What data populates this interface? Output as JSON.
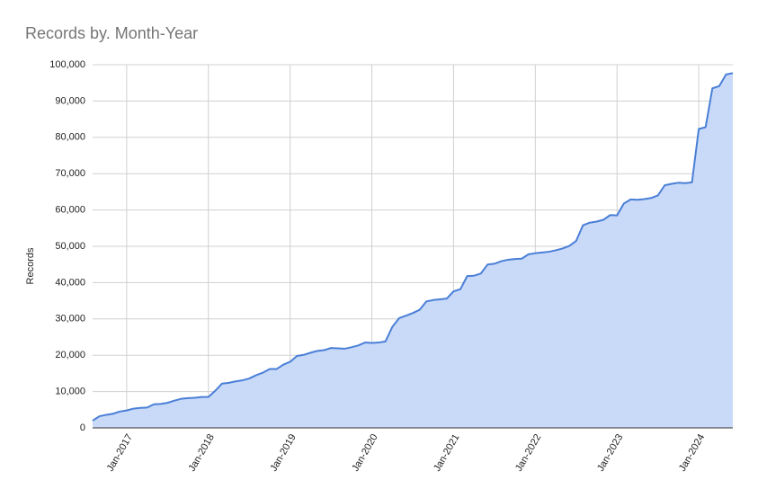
{
  "chart_data": {
    "type": "area",
    "title": "Records by. Month-Year",
    "y_label": "Records",
    "categories": [
      null,
      null,
      null,
      null,
      null,
      "Jan-2017",
      null,
      null,
      null,
      null,
      null,
      null,
      null,
      null,
      null,
      null,
      null,
      "Jan-2018",
      null,
      null,
      null,
      null,
      null,
      null,
      null,
      null,
      null,
      null,
      null,
      "Jan-2019",
      null,
      null,
      null,
      null,
      null,
      null,
      null,
      null,
      null,
      null,
      null,
      "Jan-2020",
      null,
      null,
      null,
      null,
      null,
      null,
      null,
      null,
      null,
      null,
      null,
      "Jan-2021",
      null,
      null,
      null,
      null,
      null,
      null,
      null,
      null,
      null,
      null,
      null,
      "Jan-2022",
      null,
      null,
      null,
      null,
      null,
      null,
      null,
      null,
      null,
      null,
      null,
      "Jan-2023",
      null,
      null,
      null,
      null,
      null,
      null,
      null,
      null,
      null,
      null,
      null,
      "Jan-2024",
      null,
      null,
      null,
      null,
      null
    ],
    "values": [
      2000,
      3200,
      3600,
      3900,
      4500,
      4800,
      5300,
      5500,
      5600,
      6500,
      6600,
      6900,
      7500,
      8000,
      8200,
      8300,
      8500,
      8500,
      10200,
      12200,
      12400,
      12800,
      13100,
      13600,
      14500,
      15200,
      16200,
      16200,
      17400,
      18200,
      19800,
      20100,
      20700,
      21200,
      21400,
      22000,
      21900,
      21800,
      22200,
      22700,
      23500,
      23400,
      23500,
      23800,
      27800,
      30200,
      30900,
      31600,
      32500,
      34800,
      35200,
      35400,
      35600,
      37600,
      38200,
      41800,
      41900,
      42500,
      45000,
      45200,
      45900,
      46300,
      46500,
      46600,
      47800,
      48100,
      48300,
      48500,
      48900,
      49400,
      50100,
      51500,
      55800,
      56500,
      56800,
      57300,
      58600,
      58500,
      61800,
      62900,
      62800,
      63000,
      63300,
      64000,
      66800,
      67200,
      67500,
      67400,
      67600,
      82300,
      82800,
      93500,
      94100,
      97300,
      97700
    ],
    "color": "#4a7fd6",
    "area_color": "#c9daf8",
    "ylim": [
      0,
      100000
    ],
    "yticks": [
      0,
      {
        "value": 10000,
        "label": "10,000"
      },
      {
        "value": 20000,
        "label": "20,000"
      },
      {
        "value": 30000,
        "label": "30,000"
      },
      {
        "value": 40000,
        "label": "40,000"
      },
      {
        "value": 50000,
        "label": "50,000"
      },
      {
        "value": 60000,
        "label": "60,000"
      },
      {
        "value": 70000,
        "label": "70,000"
      },
      {
        "value": 80000,
        "label": "80,000"
      },
      {
        "value": 90000,
        "label": "90,000"
      },
      {
        "value": 100000,
        "label": "100,000"
      }
    ],
    "grid": true
  }
}
